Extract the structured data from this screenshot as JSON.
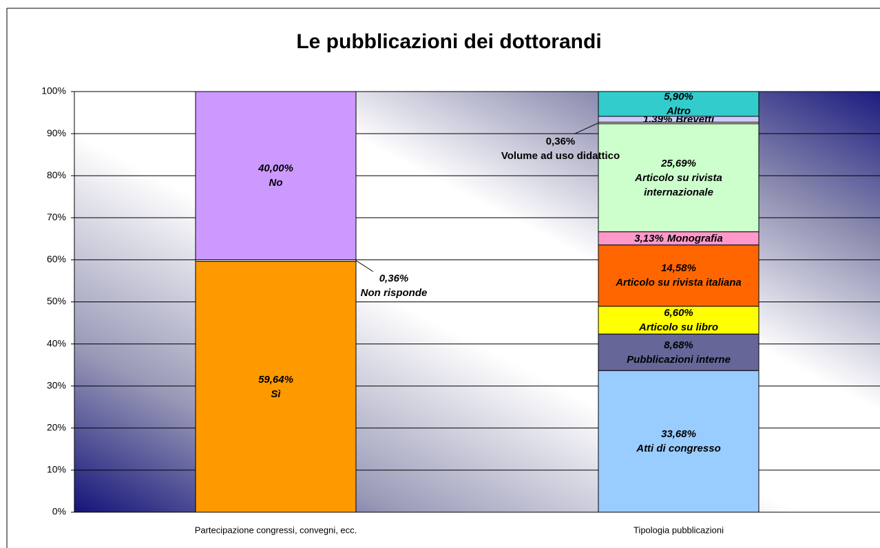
{
  "chart_data": {
    "type": "bar",
    "stacked": true,
    "title": "Le pubblicazioni dei dottorandi",
    "categories": [
      "Partecipazione congressi, convegni, ecc.",
      "Tipologia pubblicazioni"
    ],
    "ylim": [
      0,
      100
    ],
    "yticks": [
      {
        "value": 0,
        "label": "0%"
      },
      {
        "value": 10,
        "label": "10%"
      },
      {
        "value": 20,
        "label": "20%"
      },
      {
        "value": 30,
        "label": "30%"
      },
      {
        "value": 40,
        "label": "40%"
      },
      {
        "value": 50,
        "label": "50%"
      },
      {
        "value": 60,
        "label": "60%"
      },
      {
        "value": 70,
        "label": "70%"
      },
      {
        "value": 80,
        "label": "80%"
      },
      {
        "value": 90,
        "label": "90%"
      },
      {
        "value": 100,
        "label": "100%"
      }
    ],
    "grid": true,
    "series": [
      {
        "name": "Sì",
        "color": "#ff9900",
        "values": [
          59.64,
          null
        ],
        "value_labels": [
          "59,64%",
          null
        ]
      },
      {
        "name": "Non risponde",
        "color": "#ffffff",
        "values": [
          0.36,
          null
        ],
        "value_labels": [
          "0,36%",
          null
        ]
      },
      {
        "name": "No",
        "color": "#cc99ff",
        "values": [
          40.0,
          null
        ],
        "value_labels": [
          "40,00%",
          null
        ]
      },
      {
        "name": "Atti di congresso",
        "color": "#99ccff",
        "values": [
          null,
          33.68
        ],
        "value_labels": [
          null,
          "33,68%"
        ]
      },
      {
        "name": "Pubblicazioni interne",
        "color": "#666699",
        "values": [
          null,
          8.68
        ],
        "value_labels": [
          null,
          "8,68%"
        ]
      },
      {
        "name": "Articolo su libro",
        "color": "#ffff00",
        "values": [
          null,
          6.6
        ],
        "value_labels": [
          null,
          "6,60%"
        ]
      },
      {
        "name": "Articolo su rivista italiana",
        "color": "#ff6600",
        "values": [
          null,
          14.58
        ],
        "value_labels": [
          null,
          "14,58%"
        ]
      },
      {
        "name": "Monografia",
        "color": "#ff99cc",
        "values": [
          null,
          3.13
        ],
        "value_labels": [
          null,
          "3,13%"
        ]
      },
      {
        "name": "Articolo su rivista internazionale",
        "color": "#ccffcc",
        "values": [
          null,
          25.69
        ],
        "value_labels": [
          null,
          "25,69%"
        ]
      },
      {
        "name": "Volume ad uso didattico",
        "color": "#ffffff",
        "values": [
          null,
          0.36
        ],
        "value_labels": [
          null,
          "0,36%"
        ]
      },
      {
        "name": "Brevetti",
        "color": "#ccccff",
        "values": [
          null,
          1.39
        ],
        "value_labels": [
          null,
          "1,39%"
        ]
      },
      {
        "name": "Altro",
        "color": "#33cccc",
        "values": [
          null,
          5.9
        ],
        "value_labels": [
          null,
          "5,90%"
        ]
      }
    ]
  }
}
